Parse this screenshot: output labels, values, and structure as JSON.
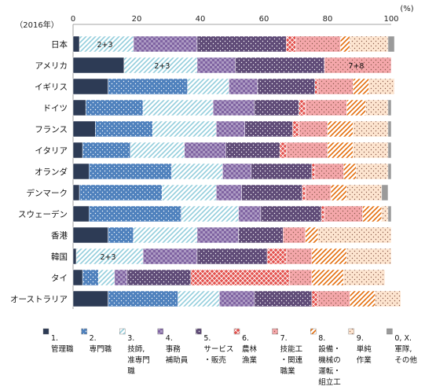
{
  "chart_data": {
    "type": "bar",
    "orientation": "horizontal",
    "stacked": true,
    "year_label": "（2016年）",
    "unit_label": "(%)",
    "xlim": [
      0,
      100
    ],
    "x_ticks": [
      "0",
      "20",
      "40",
      "60",
      "80",
      "100"
    ],
    "grid": false,
    "legend_position": "bottom",
    "categories": [
      "日本",
      "アメリカ",
      "イギリス",
      "ドイツ",
      "フランス",
      "イタリア",
      "オランダ",
      "デンマーク",
      "スウェーデン",
      "香港",
      "韓国",
      "タイ",
      "オーストラリア"
    ],
    "series": [
      {
        "name": "1.\n管理職",
        "color": "#2d3b55",
        "pattern": "solid",
        "values": [
          2,
          16,
          11,
          4,
          7,
          3,
          5,
          2,
          5,
          11,
          1,
          3,
          11
        ]
      },
      {
        "name": "2.\n専門職",
        "color": "#4f81bd",
        "pattern": "dots",
        "values": [
          0,
          0,
          25,
          18,
          18,
          15,
          26,
          26,
          29,
          8,
          0,
          5,
          22
        ]
      },
      {
        "name": "3.\n技師,\n准専門\n職",
        "color": "#92cddc",
        "pattern": "diag",
        "values": [
          17,
          23,
          13,
          22,
          20,
          17,
          16,
          17,
          18,
          20,
          21,
          5,
          13
        ]
      },
      {
        "name": "4.\n事務\n補助員",
        "color": "#8064a2",
        "pattern": "checks",
        "values": [
          20,
          12,
          9,
          13,
          9,
          13,
          9,
          8,
          7,
          13,
          17,
          4,
          11
        ]
      },
      {
        "name": "5.\nサービス\n・販売",
        "color": "#5f4b77",
        "pattern": "dots",
        "values": [
          28,
          28,
          18,
          14,
          15,
          17,
          19,
          19,
          19,
          14,
          22,
          20,
          18
        ]
      },
      {
        "name": "6.\n農林\n漁業",
        "color": "#e3504c",
        "pattern": "lattice",
        "values": [
          3,
          0,
          1,
          2,
          2,
          2,
          1,
          1,
          1,
          0,
          6,
          31,
          2
        ]
      },
      {
        "name": "7.\n技能工\n・関連\n職業",
        "color": "#f4a7aa",
        "pattern": "dots",
        "values": [
          14,
          21,
          11,
          13,
          9,
          13,
          9,
          8,
          12,
          7,
          8,
          7,
          10
        ]
      },
      {
        "name": "8.\n設備・\n機械の\n運転・\n組立工",
        "color": "#e36c0a",
        "pattern": "diag",
        "values": [
          3,
          0,
          5,
          6,
          8,
          8,
          4,
          5,
          6,
          4,
          11,
          10,
          8
        ]
      },
      {
        "name": "9.\n単純\n作業",
        "color": "#fde5d0",
        "pattern": "dots",
        "values": [
          12,
          0,
          8,
          7,
          11,
          11,
          10,
          11,
          2,
          23,
          14,
          13,
          8
        ]
      },
      {
        "name": "0, X.\n軍隊,\nその他",
        "color": "#9a9a9a",
        "pattern": "solid",
        "values": [
          2,
          0,
          0,
          1,
          1,
          1,
          1,
          2,
          1,
          0,
          0,
          0,
          0
        ]
      }
    ],
    "annotations": [
      {
        "category": "日本",
        "text": "2+3",
        "at_value": 10
      },
      {
        "category": "アメリカ",
        "text": "2+3",
        "at_value": 28
      },
      {
        "category": "アメリカ",
        "text": "7+8",
        "at_value": 89
      },
      {
        "category": "韓国",
        "text": "2+3",
        "at_value": 11
      }
    ]
  }
}
